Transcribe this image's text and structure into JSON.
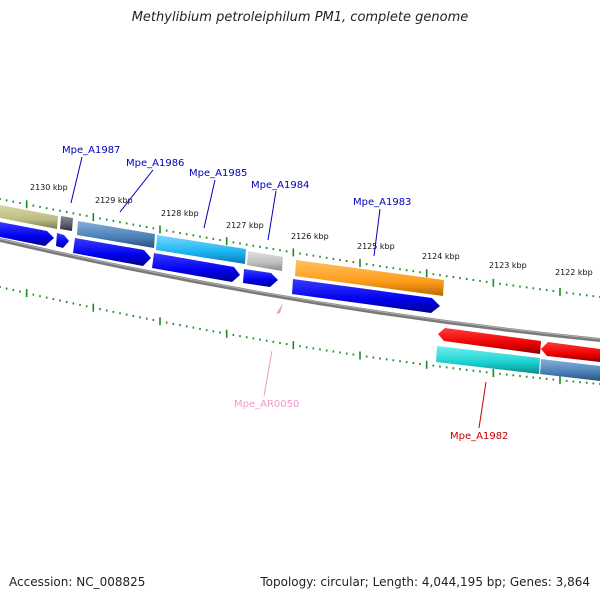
{
  "title": "Methylibium petroleiphilum PM1, complete genome",
  "footer": {
    "accession": "Accession: NC_008825",
    "topology": "Topology: circular; Length: 4,044,195 bp; Genes: 3,864"
  },
  "kbp_labels": [
    "2130 kbp",
    "2129 kbp",
    "2128 kbp",
    "2127 kbp",
    "2126 kbp",
    "2125 kbp",
    "2124 kbp",
    "2123 kbp",
    "2122 kbp"
  ],
  "gene_labels": {
    "a1987": "Mpe_A1987",
    "a1986": "Mpe_A1986",
    "a1985": "Mpe_A1985",
    "a1984": "Mpe_A1984",
    "a1983": "Mpe_A1983",
    "ar0050": "Mpe_AR0050",
    "a1982": "Mpe_A1982"
  },
  "colors": {
    "backbone": "#888888",
    "ticks": "#1a8a1a",
    "label_blue": "#0000bb",
    "label_pink": "#f09ac8",
    "label_red": "#cc0000",
    "cds_forward": "#0000ee",
    "cds_reverse": "#ee0000"
  }
}
